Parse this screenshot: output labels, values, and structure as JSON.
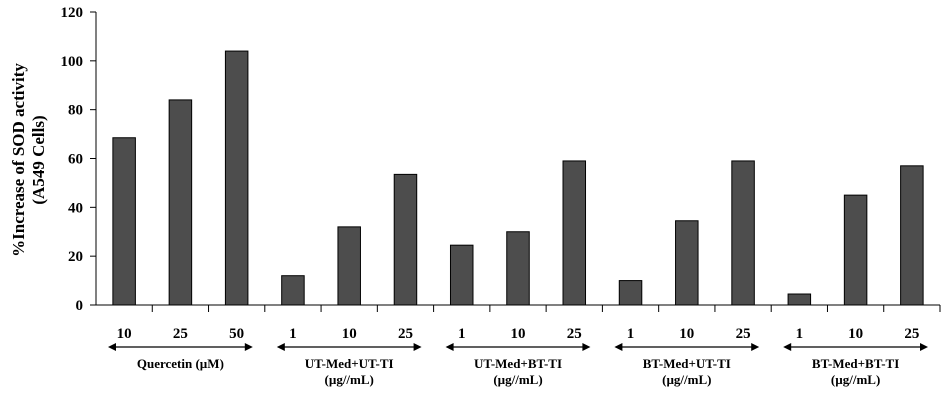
{
  "chart_data": {
    "type": "bar",
    "ylabel_lines": [
      "%Increase of SOD activity",
      "(A549 Cells)"
    ],
    "ylim": [
      0,
      120
    ],
    "yticks": [
      0,
      20,
      40,
      60,
      80,
      100,
      120
    ],
    "grid": false,
    "bar_color": "#4d4d4d",
    "groups": [
      {
        "label_lines": [
          "Quercetin (µM)"
        ],
        "categories": [
          "10",
          "25",
          "50"
        ],
        "values": [
          68.5,
          84,
          104
        ]
      },
      {
        "label_lines": [
          "UT-Med+UT-TI",
          "(µg//mL)"
        ],
        "categories": [
          "1",
          "10",
          "25"
        ],
        "values": [
          12,
          32,
          53.5
        ]
      },
      {
        "label_lines": [
          "UT-Med+BT-TI",
          "(µg//mL)"
        ],
        "categories": [
          "1",
          "10",
          "25"
        ],
        "values": [
          24.5,
          30,
          59
        ]
      },
      {
        "label_lines": [
          "BT-Med+UT-TI",
          "(µg//mL)"
        ],
        "categories": [
          "1",
          "10",
          "25"
        ],
        "values": [
          10,
          34.5,
          59
        ]
      },
      {
        "label_lines": [
          "BT-Med+BT-TI",
          "(µg//mL)"
        ],
        "categories": [
          "1",
          "10",
          "25"
        ],
        "values": [
          4.5,
          45,
          57
        ]
      }
    ]
  }
}
